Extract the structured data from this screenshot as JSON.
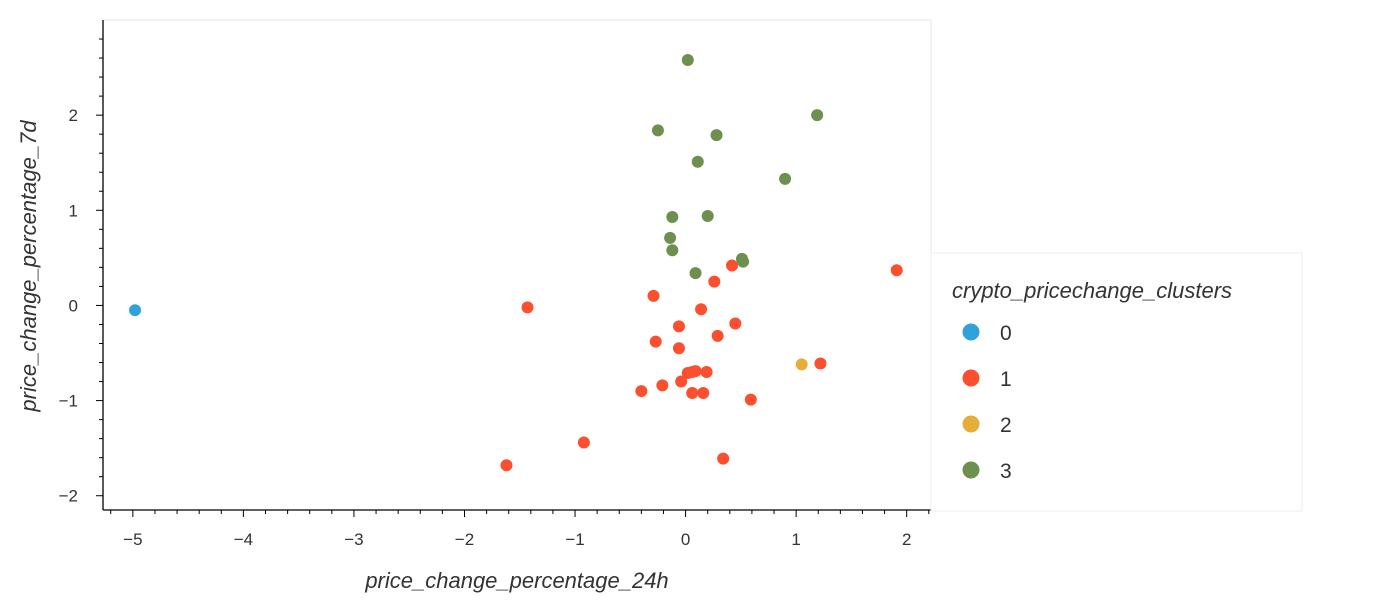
{
  "chart_data": {
    "type": "scatter",
    "title": "",
    "xlabel": "price_change_percentage_24h",
    "ylabel": "price_change_percentage_7d",
    "xlim": [
      -5.27,
      2.22
    ],
    "ylim": [
      -2.15,
      3.0
    ],
    "x_ticks": [
      -5,
      -4,
      -3,
      -2,
      -1,
      0,
      1,
      2
    ],
    "x_tick_labels": [
      "−5",
      "−4",
      "−3",
      "−2",
      "−1",
      "0",
      "1",
      "2"
    ],
    "y_ticks": [
      -2,
      -1,
      0,
      1,
      2
    ],
    "y_tick_labels": [
      "−2",
      "−1",
      "0",
      "1",
      "2"
    ],
    "grid": false,
    "legend": {
      "title": "crypto_pricechange_clusters",
      "placement": "right"
    },
    "series": [
      {
        "name": "0",
        "color": "#30a2da",
        "points": [
          [
            -4.98,
            -0.05
          ]
        ]
      },
      {
        "name": "1",
        "color": "#fc4f30",
        "points": [
          [
            -1.43,
            -0.02
          ],
          [
            -0.29,
            0.1
          ],
          [
            0.26,
            0.25
          ],
          [
            0.42,
            0.42
          ],
          [
            1.91,
            0.37
          ],
          [
            0.14,
            -0.04
          ],
          [
            -0.06,
            -0.22
          ],
          [
            0.45,
            -0.19
          ],
          [
            -0.27,
            -0.38
          ],
          [
            0.29,
            -0.32
          ],
          [
            -0.06,
            -0.45
          ],
          [
            0.02,
            -0.71
          ],
          [
            0.06,
            -0.7
          ],
          [
            0.09,
            -0.69
          ],
          [
            0.19,
            -0.7
          ],
          [
            -0.04,
            -0.8
          ],
          [
            -0.21,
            -0.84
          ],
          [
            -0.4,
            -0.9
          ],
          [
            0.06,
            -0.92
          ],
          [
            0.16,
            -0.92
          ],
          [
            0.59,
            -0.99
          ],
          [
            1.22,
            -0.61
          ],
          [
            -0.92,
            -1.44
          ],
          [
            0.34,
            -1.61
          ],
          [
            -1.62,
            -1.68
          ]
        ]
      },
      {
        "name": "2",
        "color": "#e5ae38",
        "points": [
          [
            1.05,
            -0.62
          ]
        ]
      },
      {
        "name": "3",
        "color": "#6d904f",
        "points": [
          [
            0.02,
            2.58
          ],
          [
            1.19,
            2.0
          ],
          [
            -0.25,
            1.84
          ],
          [
            0.28,
            1.79
          ],
          [
            0.11,
            1.51
          ],
          [
            0.9,
            1.33
          ],
          [
            -0.12,
            0.93
          ],
          [
            0.2,
            0.94
          ],
          [
            -0.14,
            0.71
          ],
          [
            -0.12,
            0.58
          ],
          [
            0.51,
            0.49
          ],
          [
            0.52,
            0.46
          ],
          [
            0.09,
            0.34
          ]
        ]
      }
    ]
  }
}
